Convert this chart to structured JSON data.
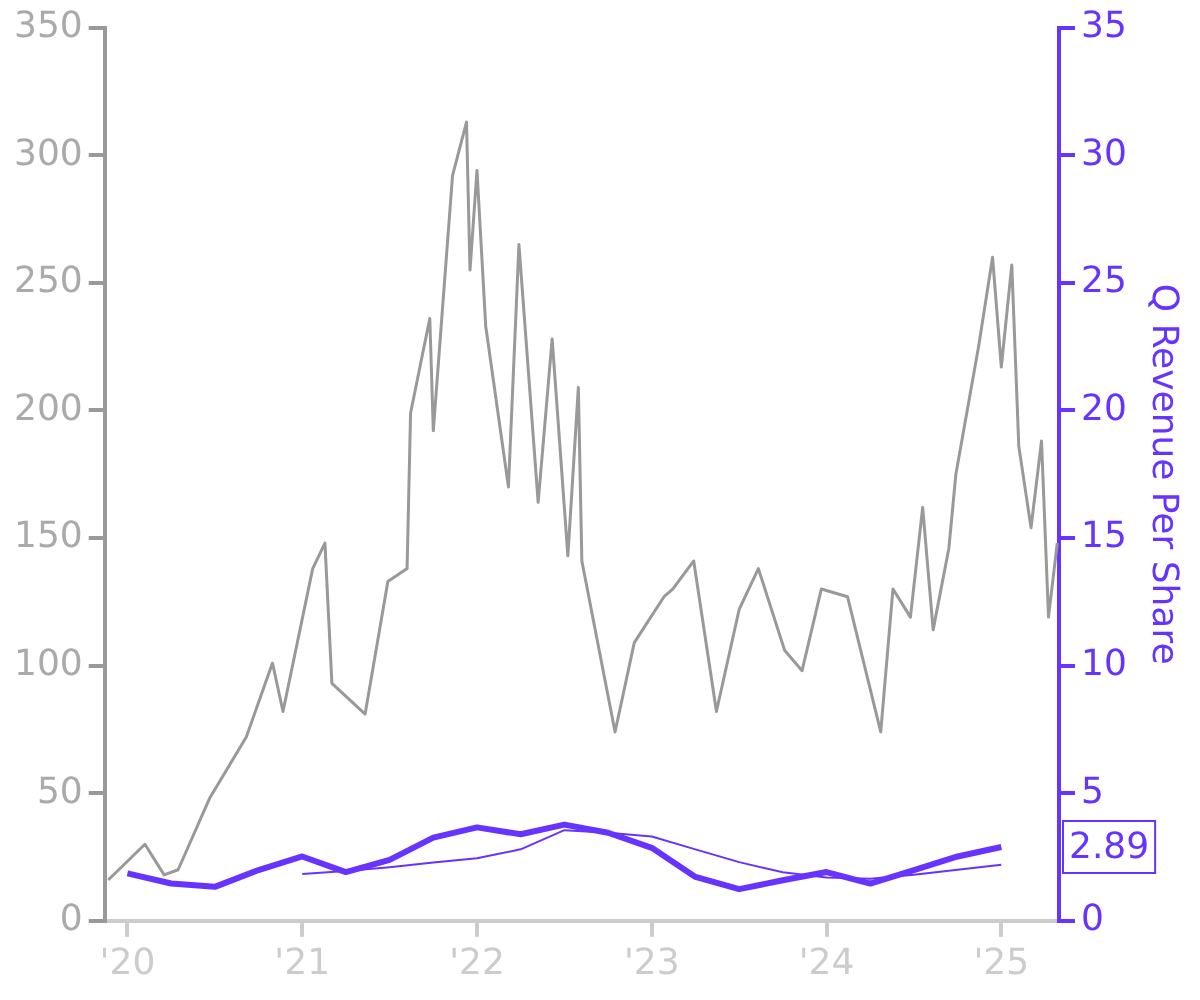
{
  "chart_data": {
    "type": "line",
    "y2label": "Q Revenue Per Share",
    "xlim": [
      2019.87,
      2025.33
    ],
    "xticks": [
      {
        "value": 2020,
        "label": "'20"
      },
      {
        "value": 2021,
        "label": "'21"
      },
      {
        "value": 2022,
        "label": "'22"
      },
      {
        "value": 2023,
        "label": "'23"
      },
      {
        "value": 2024,
        "label": "'24"
      },
      {
        "value": 2025,
        "label": "'25"
      }
    ],
    "ylim": [
      0,
      350
    ],
    "yticks": [
      0,
      50,
      100,
      150,
      200,
      250,
      300,
      350
    ],
    "y2lim": [
      0,
      35
    ],
    "y2ticks": [
      0,
      5,
      10,
      15,
      20,
      25,
      30,
      35
    ],
    "grid": false,
    "legend": false,
    "marker": "none",
    "line_style": "solid",
    "series": [
      {
        "color": "#999999",
        "axis": "y",
        "x": [
          2019.89,
          2020.1,
          2020.21,
          2020.29,
          2020.47,
          2020.68,
          2020.83,
          2020.89,
          2021.06,
          2021.13,
          2021.17,
          2021.36,
          2021.49,
          2021.6,
          2021.62,
          2021.73,
          2021.75,
          2021.86,
          2021.94,
          2021.96,
          2022.0,
          2022.05,
          2022.18,
          2022.24,
          2022.35,
          2022.43,
          2022.52,
          2022.58,
          2022.6,
          2022.79,
          2022.9,
          2023.07,
          2023.12,
          2023.24,
          2023.37,
          2023.5,
          2023.61,
          2023.76,
          2023.86,
          2023.97,
          2024.12,
          2024.31,
          2024.38,
          2024.48,
          2024.55,
          2024.61,
          2024.7,
          2024.74,
          2024.87,
          2024.95,
          2025.0,
          2025.06,
          2025.1,
          2025.17,
          2025.23,
          2025.27,
          2025.32
        ],
        "values": [
          16,
          30,
          18,
          20,
          48,
          72,
          101,
          82,
          138,
          148,
          93,
          81,
          133,
          138,
          199,
          236,
          192,
          292,
          313,
          255,
          294,
          233,
          170,
          265,
          164,
          228,
          143,
          209,
          141,
          74,
          109,
          127,
          130,
          141,
          82,
          122,
          138,
          106,
          98,
          130,
          127,
          74,
          130,
          119,
          162,
          114,
          146,
          175,
          225,
          260,
          217,
          257,
          186,
          154,
          188,
          119,
          148
        ]
      },
      {
        "color": "#6633ff",
        "axis": "y2",
        "x": [
          2020,
          2020.25,
          2020.5,
          2020.75,
          2021,
          2021.25,
          2021.5,
          2021.75,
          2022,
          2022.25,
          2022.5,
          2022.75,
          2023,
          2023.25,
          2023.5,
          2023.75,
          2024,
          2024.25,
          2024.5,
          2024.75,
          2025
        ],
        "values": [
          1.86,
          1.46,
          1.33,
          1.99,
          2.52,
          1.91,
          2.39,
          3.26,
          3.66,
          3.39,
          3.77,
          3.45,
          2.86,
          1.72,
          1.24,
          1.59,
          1.91,
          1.46,
          1.99,
          2.52,
          2.89
        ],
        "value_labels": [
          null,
          null,
          null,
          null,
          null,
          null,
          null,
          null,
          null,
          null,
          null,
          null,
          null,
          null,
          null,
          null,
          null,
          null,
          null,
          null,
          "2.89"
        ]
      },
      {
        "color": "#6633ff",
        "axis": "y2",
        "x": [
          2021,
          2021.25,
          2021.5,
          2021.75,
          2022,
          2022.25,
          2022.5,
          2022.75,
          2023,
          2023.25,
          2023.5,
          2023.75,
          2024,
          2024.25,
          2024.5,
          2024.75,
          2025
        ],
        "values": [
          1.83,
          1.95,
          2.1,
          2.28,
          2.45,
          2.8,
          3.55,
          3.45,
          3.3,
          2.8,
          2.3,
          1.9,
          1.7,
          1.65,
          1.8,
          2.0,
          2.2
        ]
      }
    ]
  }
}
